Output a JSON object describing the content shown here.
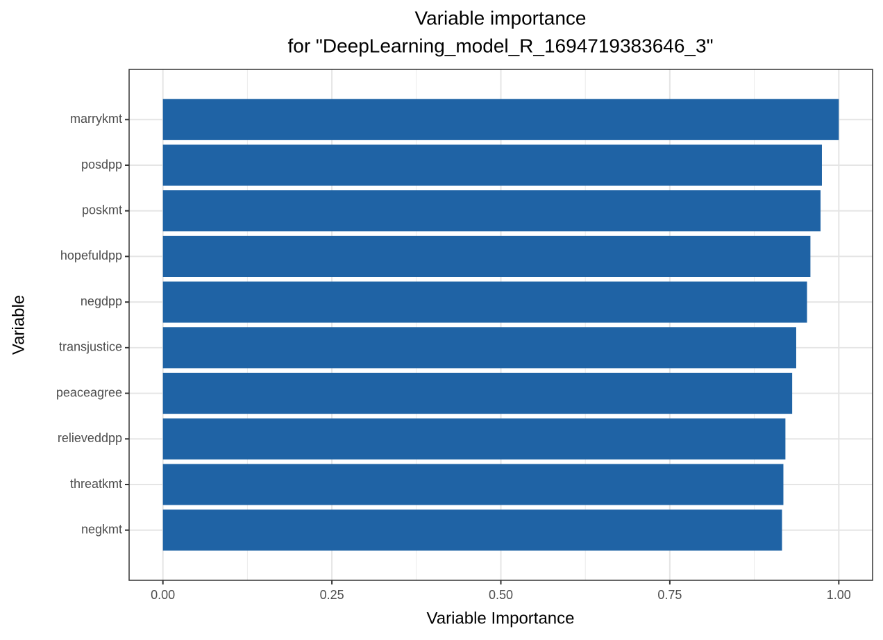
{
  "chart_data": {
    "type": "bar",
    "orientation": "horizontal",
    "title": "Variable importance",
    "subtitle": "for \"DeepLearning_model_R_1694719383646_3\"",
    "x_label": "Variable Importance",
    "y_label": "Variable",
    "categories": [
      "marrykmt",
      "posdpp",
      "poskmt",
      "hopefuldpp",
      "negdpp",
      "transjustice",
      "peaceagree",
      "relieveddpp",
      "threatkmt",
      "negkmt"
    ],
    "values": [
      1.0,
      0.975,
      0.973,
      0.958,
      0.953,
      0.937,
      0.931,
      0.921,
      0.918,
      0.916
    ],
    "color": "#1f63a5",
    "xlim": [
      -0.05,
      1.05
    ],
    "xticks": [
      {
        "value": 0,
        "label": "0.00"
      },
      {
        "value": 0.25,
        "label": "0.25"
      },
      {
        "value": 0.5,
        "label": "0.50"
      },
      {
        "value": 0.75,
        "label": "0.75"
      },
      {
        "value": 1,
        "label": "1.00"
      }
    ],
    "xminor": [
      0.125,
      0.375,
      0.625,
      0.875
    ],
    "grid": true
  }
}
